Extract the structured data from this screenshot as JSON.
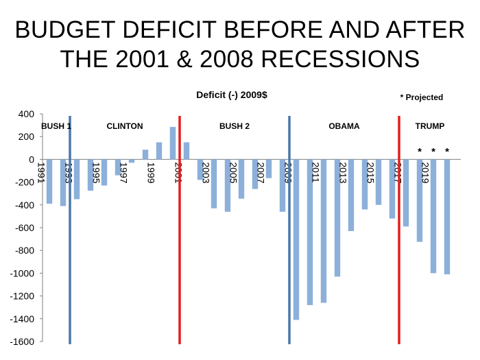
{
  "slide": {
    "title_line1": "BUDGET DEFICIT BEFORE AND AFTER",
    "title_line2": "THE 2001 & 2008 RECESSIONS"
  },
  "chart_data": {
    "type": "bar",
    "title": "Deficit (-) 2009$",
    "xlabel": "",
    "ylabel": "",
    "note": "* Projected",
    "ylim": [
      -1600,
      400
    ],
    "yticks": [
      400,
      200,
      0,
      -200,
      -400,
      -600,
      -800,
      -1000,
      -1200,
      -1400,
      -1600
    ],
    "grid": false,
    "legend": "none",
    "bar_color": "#8CB0DA",
    "x_tick_labels": [
      "1991",
      "1993",
      "1995",
      "1997",
      "1999",
      "2001",
      "2003",
      "2005",
      "2007",
      "2009",
      "2011",
      "2013",
      "2015",
      "2017",
      "2019"
    ],
    "categories": [
      "1991",
      "1992",
      "1993",
      "1994",
      "1995",
      "1996",
      "1997",
      "1998",
      "1999",
      "2000",
      "2001",
      "2002",
      "2003",
      "2004",
      "2005",
      "2006",
      "2007",
      "2008",
      "2009",
      "2010",
      "2011",
      "2012",
      "2013",
      "2014",
      "2015",
      "2016",
      "2017",
      "2018",
      "2019",
      "2020"
    ],
    "values": [
      -390,
      -410,
      -350,
      -275,
      -230,
      -140,
      -30,
      85,
      150,
      285,
      150,
      -180,
      -430,
      -460,
      -345,
      -260,
      -165,
      -460,
      -1410,
      -1280,
      -1260,
      -1030,
      -630,
      -440,
      -400,
      -520,
      -590,
      -725,
      -1000,
      -1010
    ],
    "projected": [
      "2018",
      "2019",
      "2020"
    ],
    "projected_marker": "*",
    "eras": [
      {
        "label": "BUSH 1",
        "divider_year": 1993,
        "divider_color": "#4A78A8"
      },
      {
        "label": "CLINTON",
        "divider_year": 2001,
        "divider_color": "#E21E1E"
      },
      {
        "label": "BUSH 2",
        "divider_year": 2009,
        "divider_color": "#4A78A8"
      },
      {
        "label": "OBAMA",
        "divider_year": 2017,
        "divider_color": "#E21E1E"
      },
      {
        "label": "TRUMP"
      }
    ]
  }
}
